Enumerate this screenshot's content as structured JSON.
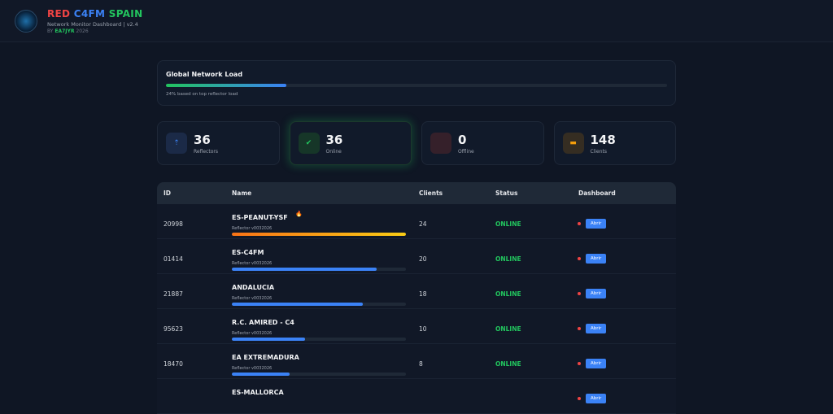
{
  "header": {
    "title_red": "RED",
    "title_blue": "C4FM",
    "title_green": "SPAIN",
    "subtitle": "Network Monitor Dashboard | v2.4",
    "by": "BY",
    "author": "EA7JYR",
    "year": "2026"
  },
  "load": {
    "title": "Global Network Load",
    "percent": 24,
    "caption": "24% based on top reflector load"
  },
  "stats": [
    {
      "value": "36",
      "label": "Reflectors",
      "icon": "antenna-icon",
      "color": "#3b82f6",
      "bg": "#1b2a47"
    },
    {
      "value": "36",
      "label": "Online",
      "icon": "check-icon",
      "color": "#22c55e",
      "bg": "#163628"
    },
    {
      "value": "0",
      "label": "Offline",
      "icon": "x-icon",
      "color": "#ef4444",
      "bg": "#35202a"
    },
    {
      "value": "148",
      "label": "Clients",
      "icon": "users-icon",
      "color": "#f59e0b",
      "bg": "#352d22"
    }
  ],
  "table": {
    "headers": [
      "ID",
      "Name",
      "Clients",
      "Status",
      "Dashboard"
    ],
    "rows": [
      {
        "id": "20998",
        "name": "ES-PEANUT-YSF",
        "version": "Reflector v0032026",
        "clients": "24",
        "load": 100,
        "status": "ONLINE",
        "button": "Abrir",
        "hot": true
      },
      {
        "id": "01414",
        "name": "ES-C4FM",
        "version": "Reflector v0032026",
        "clients": "20",
        "load": 83,
        "status": "ONLINE",
        "button": "Abrir"
      },
      {
        "id": "21887",
        "name": "ANDALUCIA",
        "version": "Reflector v0032026",
        "clients": "18",
        "load": 75,
        "status": "ONLINE",
        "button": "Abrir"
      },
      {
        "id": "95623",
        "name": "R.C. AMIRED - C4",
        "version": "Reflector v0032026",
        "clients": "10",
        "load": 42,
        "status": "ONLINE",
        "button": "Abrir"
      },
      {
        "id": "18470",
        "name": "EA EXTREMADURA",
        "version": "Reflector v0032026",
        "clients": "8",
        "load": 33,
        "status": "ONLINE",
        "button": "Abrir"
      },
      {
        "id": "",
        "name": "ES-MALLORCA",
        "version": "",
        "clients": "",
        "load": 0,
        "status": "",
        "button": "Abrir"
      }
    ]
  },
  "colors": {
    "red": "#ef4444",
    "blue": "#3b82f6",
    "green": "#22c55e"
  }
}
